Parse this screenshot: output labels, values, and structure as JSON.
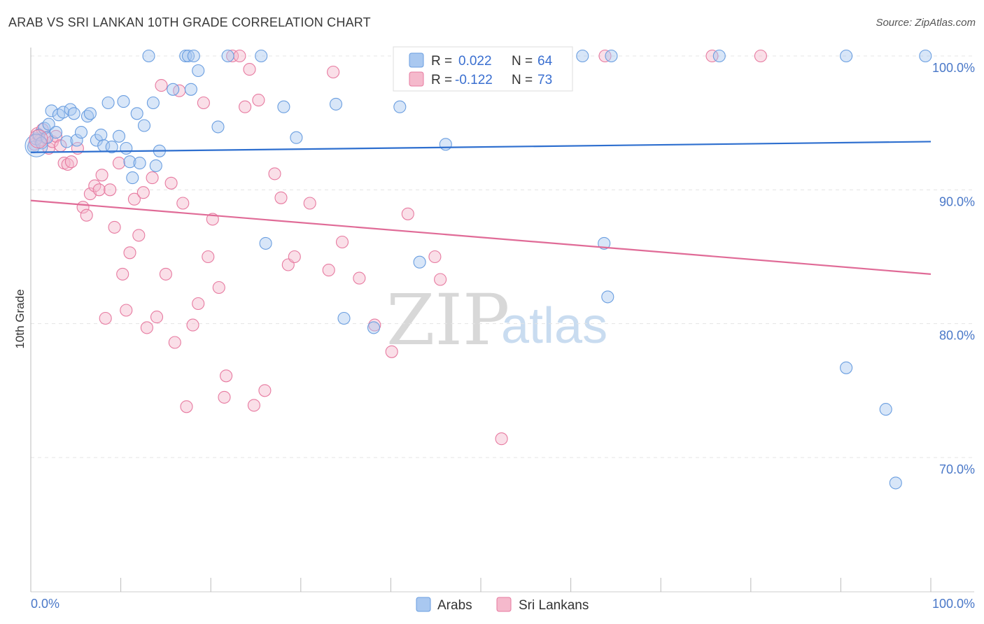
{
  "header": {
    "title": "ARAB VS SRI LANKAN 10TH GRADE CORRELATION CHART",
    "source": "Source: ZipAtlas.com"
  },
  "legend_box": {
    "rows": [
      {
        "r_label": "R =",
        "r_value": "0.022",
        "n_label": "N =",
        "n_value": "64",
        "color": "#a9c8f0"
      },
      {
        "r_label": "R =",
        "r_value": "-0.122",
        "n_label": "N =",
        "n_value": "73",
        "color": "#f5b9cc"
      }
    ]
  },
  "bottom_legend": {
    "items": [
      {
        "label": "Arabs",
        "color": "#a9c8f0"
      },
      {
        "label": "Sri Lankans",
        "color": "#f5b9cc"
      }
    ]
  },
  "watermark": {
    "zip": "ZIP",
    "atlas": "atlas"
  },
  "chart_data": {
    "type": "scatter",
    "title": "ARAB VS SRI LANKAN 10TH GRADE CORRELATION CHART",
    "ylabel": "10th Grade",
    "xlabel": "",
    "xlim": [
      0,
      100
    ],
    "ylim": [
      60,
      103.5
    ],
    "x_tick_labels": [
      "0.0%",
      "100.0%"
    ],
    "y_ticks": [
      {
        "value": 100,
        "label": "100.0%"
      },
      {
        "value": 90,
        "label": "90.0%"
      },
      {
        "value": 80,
        "label": "80.0%"
      },
      {
        "value": 70,
        "label": "70.0%"
      }
    ],
    "grid": true,
    "legend_position": "top-center",
    "series": [
      {
        "name": "Arabs",
        "color": "#6a9ee0",
        "fill": "#a9c8f0",
        "r": 0.022,
        "n": 64,
        "trend": {
          "x": [
            0,
            100
          ],
          "y": [
            92.8,
            93.6
          ]
        },
        "points": [
          [
            0.3,
            93.2
          ],
          [
            0.6,
            93.8
          ],
          [
            0.9,
            94.1
          ],
          [
            1.2,
            93.5
          ],
          [
            1.5,
            94.6
          ],
          [
            1.8,
            93.9
          ],
          [
            2.0,
            94.9
          ],
          [
            2.3,
            95.9
          ],
          [
            2.8,
            94.3
          ],
          [
            3.1,
            95.6
          ],
          [
            3.6,
            95.8
          ],
          [
            4.0,
            93.6
          ],
          [
            4.4,
            96.0
          ],
          [
            4.8,
            95.7
          ],
          [
            5.1,
            93.7
          ],
          [
            5.6,
            94.3
          ],
          [
            6.3,
            95.5
          ],
          [
            6.6,
            95.7
          ],
          [
            7.3,
            93.7
          ],
          [
            7.8,
            94.1
          ],
          [
            8.1,
            93.3
          ],
          [
            8.6,
            96.5
          ],
          [
            9.0,
            93.2
          ],
          [
            9.8,
            94.0
          ],
          [
            10.3,
            96.6
          ],
          [
            10.6,
            93.1
          ],
          [
            11.0,
            92.1
          ],
          [
            11.3,
            90.9
          ],
          [
            11.8,
            95.7
          ],
          [
            12.1,
            92.0
          ],
          [
            12.6,
            94.8
          ],
          [
            13.1,
            100.0
          ],
          [
            13.6,
            96.5
          ],
          [
            13.9,
            91.8
          ],
          [
            14.3,
            92.9
          ],
          [
            15.8,
            97.5
          ],
          [
            17.2,
            100.0
          ],
          [
            17.5,
            100.0
          ],
          [
            17.8,
            97.5
          ],
          [
            18.1,
            100.0
          ],
          [
            18.6,
            98.9
          ],
          [
            20.8,
            94.7
          ],
          [
            21.9,
            100.0
          ],
          [
            25.6,
            100.0
          ],
          [
            26.1,
            86.0
          ],
          [
            28.1,
            96.2
          ],
          [
            29.5,
            93.9
          ],
          [
            33.9,
            96.4
          ],
          [
            34.8,
            80.4
          ],
          [
            38.1,
            79.7
          ],
          [
            41.0,
            96.2
          ],
          [
            43.2,
            84.6
          ],
          [
            46.1,
            93.4
          ],
          [
            47.2,
            100.0
          ],
          [
            61.3,
            100.0
          ],
          [
            63.7,
            86.0
          ],
          [
            64.1,
            82.0
          ],
          [
            64.5,
            100.0
          ],
          [
            76.5,
            100.0
          ],
          [
            90.6,
            100.0
          ],
          [
            90.6,
            76.7
          ],
          [
            95.0,
            73.6
          ],
          [
            96.1,
            68.1
          ],
          [
            99.4,
            100.0
          ]
        ]
      },
      {
        "name": "Sri Lankans",
        "color": "#e77aa0",
        "fill": "#f5b9cc",
        "r": -0.122,
        "n": 73,
        "trend": {
          "x": [
            0,
            100
          ],
          "y": [
            89.2,
            83.7
          ]
        },
        "points": [
          [
            0.4,
            93.4
          ],
          [
            0.7,
            94.2
          ],
          [
            1.0,
            93.7
          ],
          [
            1.3,
            94.5
          ],
          [
            1.6,
            93.9
          ],
          [
            2.0,
            93.1
          ],
          [
            2.4,
            93.6
          ],
          [
            2.8,
            94.0
          ],
          [
            3.3,
            93.3
          ],
          [
            3.7,
            92.0
          ],
          [
            4.1,
            91.9
          ],
          [
            4.5,
            92.1
          ],
          [
            5.2,
            93.1
          ],
          [
            5.8,
            88.7
          ],
          [
            6.2,
            88.1
          ],
          [
            6.6,
            89.7
          ],
          [
            7.1,
            90.3
          ],
          [
            7.6,
            90.0
          ],
          [
            7.9,
            91.1
          ],
          [
            8.3,
            80.4
          ],
          [
            8.8,
            90.0
          ],
          [
            9.3,
            87.2
          ],
          [
            9.8,
            92.0
          ],
          [
            10.2,
            83.7
          ],
          [
            10.6,
            81.0
          ],
          [
            11.0,
            85.3
          ],
          [
            11.5,
            89.3
          ],
          [
            12.0,
            86.6
          ],
          [
            12.5,
            89.8
          ],
          [
            12.9,
            79.7
          ],
          [
            13.5,
            90.9
          ],
          [
            14.0,
            80.5
          ],
          [
            14.5,
            97.8
          ],
          [
            15.0,
            83.7
          ],
          [
            15.6,
            90.5
          ],
          [
            16.0,
            78.6
          ],
          [
            16.5,
            97.4
          ],
          [
            16.9,
            89.0
          ],
          [
            17.3,
            73.8
          ],
          [
            18.0,
            79.9
          ],
          [
            18.6,
            81.5
          ],
          [
            19.2,
            96.5
          ],
          [
            19.7,
            85.0
          ],
          [
            20.2,
            87.8
          ],
          [
            20.9,
            82.7
          ],
          [
            21.5,
            74.5
          ],
          [
            21.7,
            76.1
          ],
          [
            22.4,
            100.0
          ],
          [
            23.2,
            100.0
          ],
          [
            23.8,
            96.2
          ],
          [
            24.3,
            99.0
          ],
          [
            24.8,
            73.9
          ],
          [
            25.3,
            96.7
          ],
          [
            26.0,
            75.0
          ],
          [
            27.1,
            91.2
          ],
          [
            27.8,
            89.4
          ],
          [
            28.6,
            84.4
          ],
          [
            29.3,
            85.0
          ],
          [
            31.0,
            89.0
          ],
          [
            33.1,
            84.0
          ],
          [
            33.6,
            98.8
          ],
          [
            34.6,
            86.1
          ],
          [
            36.5,
            83.4
          ],
          [
            38.2,
            79.9
          ],
          [
            40.1,
            77.9
          ],
          [
            41.9,
            88.2
          ],
          [
            44.9,
            85.0
          ],
          [
            45.5,
            83.3
          ],
          [
            48.8,
            100.0
          ],
          [
            52.3,
            71.4
          ],
          [
            63.8,
            100.0
          ],
          [
            75.7,
            100.0
          ],
          [
            81.1,
            100.0
          ]
        ]
      }
    ]
  }
}
